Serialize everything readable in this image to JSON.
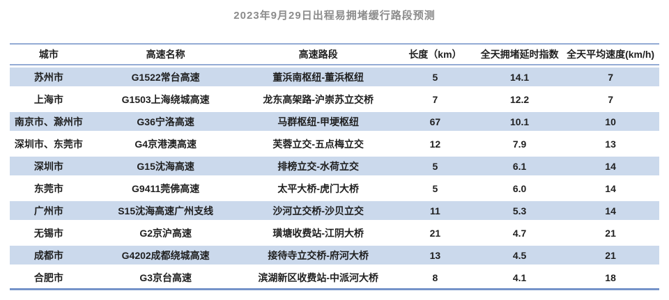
{
  "chart_data": {
    "type": "table",
    "title": "2023年9月29日出程易拥堵缓行路段预测",
    "columns": [
      "城市",
      "高速名称",
      "高速路段",
      "长度（km）",
      "全天拥堵延时指数",
      "全天平均速度(km/h)"
    ],
    "rows": [
      [
        "苏州市",
        "G1522常台高速",
        "董浜南枢纽-董浜枢纽",
        "5",
        "14.1",
        "7"
      ],
      [
        "上海市",
        "G1503上海绕城高速",
        "龙东高架路-沪崇苏立交桥",
        "7",
        "12.2",
        "7"
      ],
      [
        "南京市、滁州市",
        "G36宁洛高速",
        "马群枢纽-甲埂枢纽",
        "67",
        "10.1",
        "10"
      ],
      [
        "深圳市、东莞市",
        "G4京港澳高速",
        "芙蓉立交-五点梅立交",
        "12",
        "7.9",
        "13"
      ],
      [
        "深圳市",
        "G15沈海高速",
        "排榜立交-水荷立交",
        "5",
        "6.1",
        "14"
      ],
      [
        "东莞市",
        "G9411莞佛高速",
        "太平大桥-虎门大桥",
        "5",
        "6.0",
        "14"
      ],
      [
        "广州市",
        "S15沈海高速广州支线",
        "沙河立交桥-沙贝立交",
        "11",
        "5.3",
        "14"
      ],
      [
        "无锡市",
        "G2京沪高速",
        "璜塘收费站-江阴大桥",
        "21",
        "4.7",
        "21"
      ],
      [
        "成都市",
        "G4202成都绕城高速",
        "接待寺立交桥-府河大桥",
        "13",
        "4.5",
        "21"
      ],
      [
        "合肥市",
        "G3京台高速",
        "滨湖新区收费站-中派河大桥",
        "8",
        "4.1",
        "18"
      ]
    ],
    "layout": {
      "row_striping": "odd rows light blue, even rows white",
      "alignment": "center"
    }
  },
  "colors": {
    "alt_row_blue": "#cbd9ec",
    "header_rule_blue": "#93abd4",
    "bottom_rule_blue": "#7593c9",
    "title_gray": "#8b8b8b",
    "text_dark": "#1f1f1f",
    "background": "#ffffff"
  }
}
